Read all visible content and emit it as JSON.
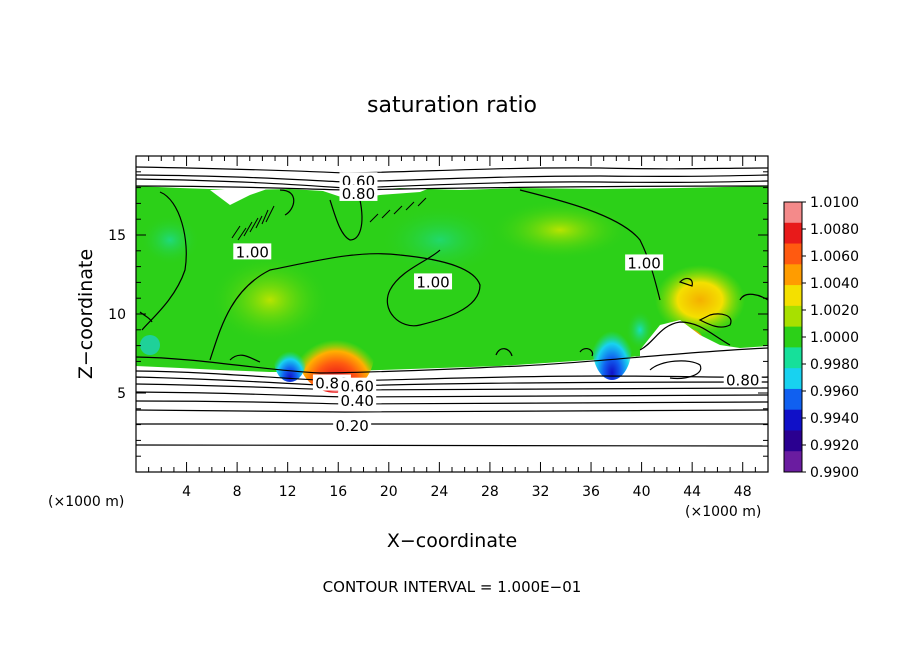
{
  "chart_data": {
    "type": "heatmap",
    "title": "saturation ratio",
    "xlabel": "X−coordinate",
    "ylabel": "Z−coordinate",
    "x_unit_left": "(×1000 m)",
    "x_unit_right": "(×1000 m)",
    "xlim": [
      0,
      50
    ],
    "ylim": [
      0,
      20
    ],
    "x_ticks": [
      "4",
      "8",
      "12",
      "16",
      "20",
      "24",
      "28",
      "32",
      "36",
      "40",
      "44",
      "48"
    ],
    "y_ticks": [
      "5",
      "10",
      "15"
    ],
    "footer": "CONTOUR INTERVAL = 1.000E−01",
    "colorbar": {
      "labels": [
        "1.0100",
        "1.0080",
        "1.0060",
        "1.0040",
        "1.0020",
        "1.0000",
        "0.9980",
        "0.9960",
        "0.9940",
        "0.9920",
        "0.9900"
      ],
      "colors": [
        "#f48a8a",
        "#e81a1a",
        "#ff5a10",
        "#ff9c00",
        "#f4e000",
        "#a8e000",
        "#2cd018",
        "#16e09a",
        "#18d2f0",
        "#1060f0",
        "#1010c8",
        "#2a0090",
        "#6a1ca0"
      ]
    },
    "contour_labels": [
      {
        "text": "0.60",
        "x": 17.6,
        "z": 18.4
      },
      {
        "text": "0.80",
        "x": 17.6,
        "z": 17.6
      },
      {
        "text": "1.00",
        "x": 9.2,
        "z": 13.9
      },
      {
        "text": "1.00",
        "x": 23.5,
        "z": 12.0
      },
      {
        "text": "1.00",
        "x": 40.2,
        "z": 13.2
      },
      {
        "text": "0.80",
        "x": 15.5,
        "z": 5.6
      },
      {
        "text": "0.60",
        "x": 17.5,
        "z": 5.4
      },
      {
        "text": "0.40",
        "x": 17.5,
        "z": 4.5
      },
      {
        "text": "0.20",
        "x": 17.1,
        "z": 2.9
      },
      {
        "text": "0.80",
        "x": 48.0,
        "z": 5.8
      }
    ]
  }
}
